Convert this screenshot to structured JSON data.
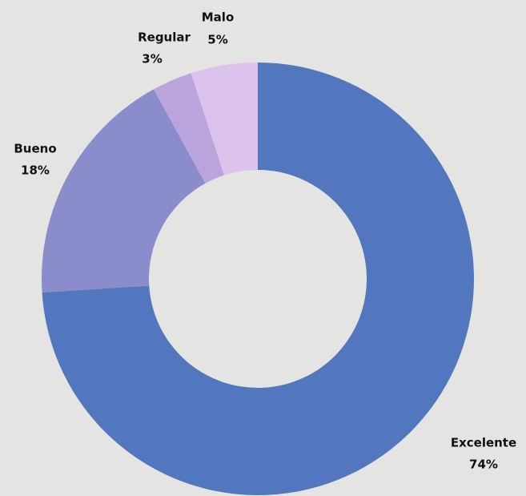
{
  "chart_data": {
    "type": "donut",
    "categories": [
      "Excelente",
      "Bueno",
      "Regular",
      "Malo"
    ],
    "values": [
      74,
      18,
      3,
      5
    ],
    "value_labels": [
      "74%",
      "18%",
      "3%",
      "5%"
    ],
    "colors": [
      "#5277be",
      "#8b8ccb",
      "#b9a5dc",
      "#dcc3ec"
    ]
  }
}
